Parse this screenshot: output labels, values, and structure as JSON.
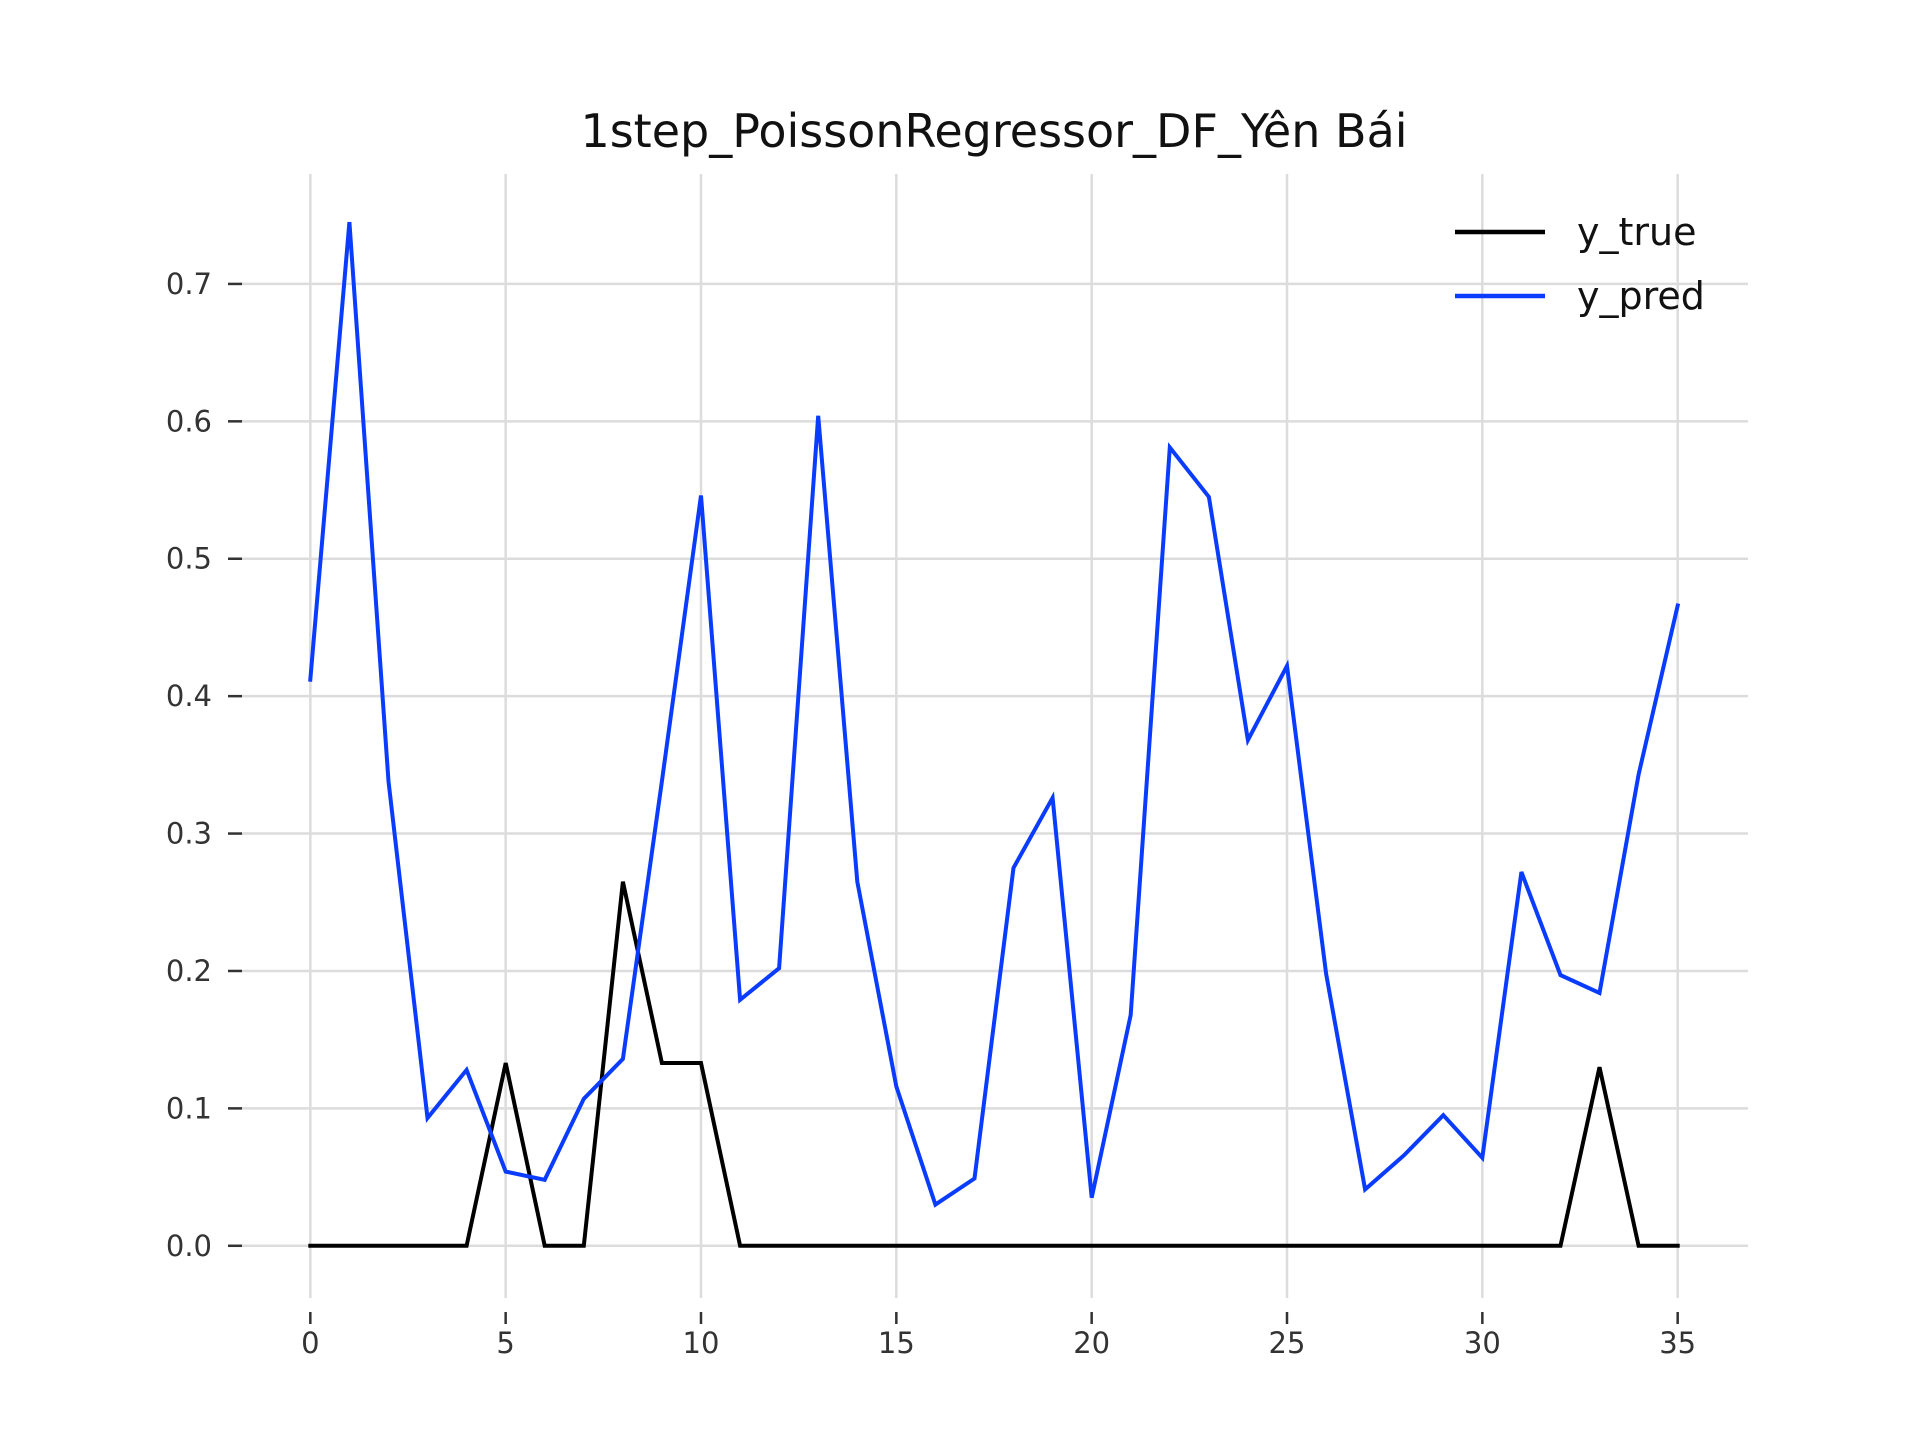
{
  "chart_data": {
    "type": "line",
    "title": "1step_PoissonRegressor_DF_Yên Bái",
    "xlabel": "",
    "ylabel": "",
    "xlim": [
      -1.8,
      36.8
    ],
    "ylim": [
      -0.038,
      0.78
    ],
    "xticks": [
      0,
      5,
      10,
      15,
      20,
      25,
      30,
      35
    ],
    "yticks": [
      0.0,
      0.1,
      0.2,
      0.3,
      0.4,
      0.5,
      0.6,
      0.7
    ],
    "ytick_labels": [
      "0.0",
      "0.1",
      "0.2",
      "0.3",
      "0.4",
      "0.5",
      "0.6",
      "0.7"
    ],
    "grid": true,
    "legend_position": "top-right",
    "x": [
      0,
      1,
      2,
      3,
      4,
      5,
      6,
      7,
      8,
      9,
      10,
      11,
      12,
      13,
      14,
      15,
      16,
      17,
      18,
      19,
      20,
      21,
      22,
      23,
      24,
      25,
      26,
      27,
      28,
      29,
      30,
      31,
      32,
      33,
      34,
      35
    ],
    "series": [
      {
        "name": "y_true",
        "color": "#000000",
        "values": [
          0,
          0,
          0,
          0,
          0,
          0.133,
          0,
          0,
          0.265,
          0.133,
          0.133,
          0,
          0,
          0,
          0,
          0,
          0,
          0,
          0,
          0,
          0,
          0,
          0,
          0,
          0,
          0,
          0,
          0,
          0,
          0,
          0,
          0,
          0,
          0.13,
          0,
          0
        ]
      },
      {
        "name": "y_pred",
        "color": "#0a3cff",
        "values": [
          0.412,
          0.745,
          0.338,
          0.093,
          0.128,
          0.054,
          0.048,
          0.107,
          0.136,
          0.338,
          0.546,
          0.179,
          0.202,
          0.604,
          0.265,
          0.116,
          0.03,
          0.049,
          0.275,
          0.326,
          0.035,
          0.168,
          0.581,
          0.545,
          0.368,
          0.422,
          0.198,
          0.041,
          0.066,
          0.095,
          0.064,
          0.272,
          0.197,
          0.184,
          0.343,
          0.466
        ]
      }
    ]
  }
}
